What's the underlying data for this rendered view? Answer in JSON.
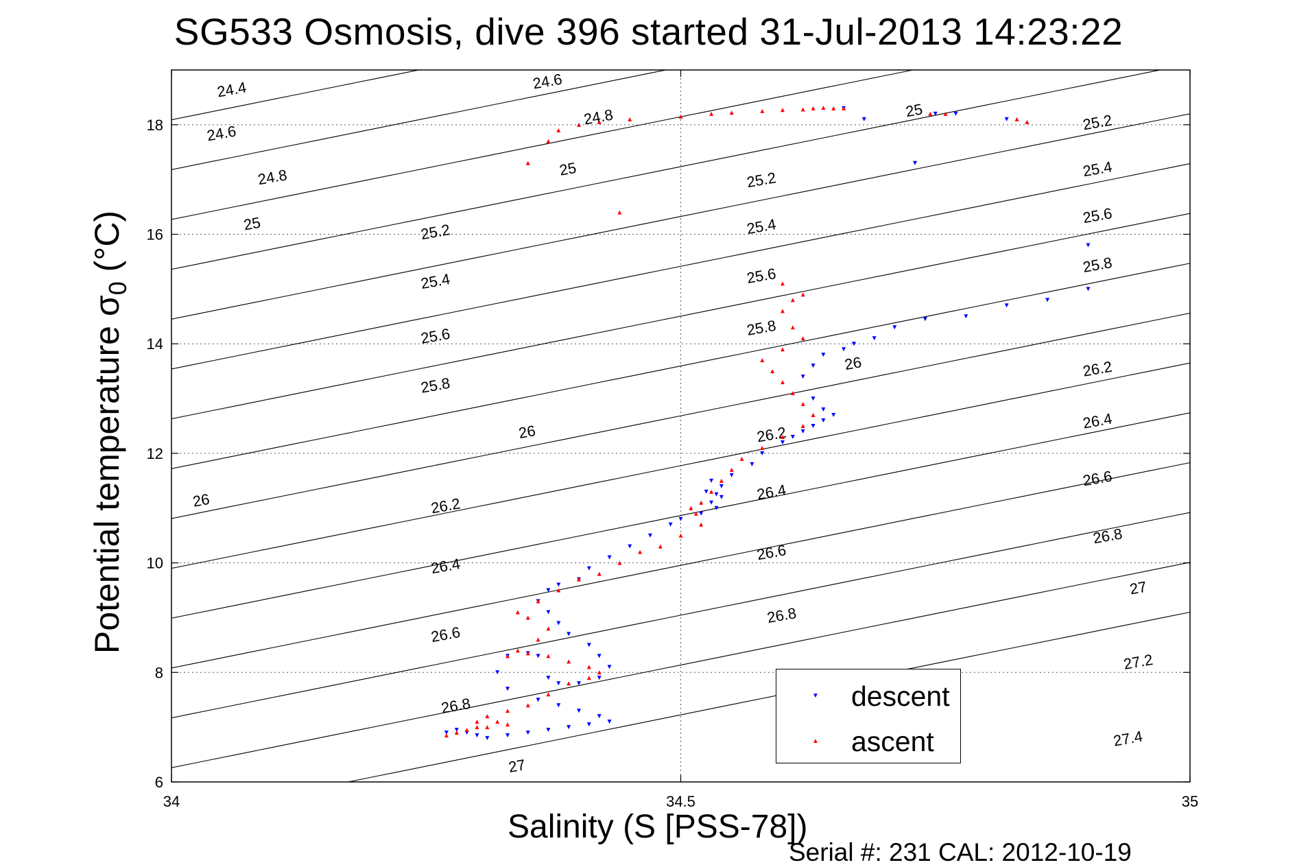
{
  "chart_data": {
    "type": "scatter",
    "title": "SG533 Osmosis, dive 396 started 31-Jul-2013 14:23:22",
    "xlabel": "Salinity (S [PSS-78])",
    "ylabel_main": "Potential temperature σ",
    "ylabel_sub": "0",
    "ylabel_unit": "(°C)",
    "footer": "Serial #: 231  CAL: 2012-10-19",
    "xlim": [
      34,
      35
    ],
    "ylim": [
      6,
      19
    ],
    "xticks": [
      "34",
      "34.5",
      "35"
    ],
    "yticks": [
      "6",
      "8",
      "10",
      "12",
      "14",
      "16",
      "18"
    ],
    "grid": "dotted at x=34.5 and y=8,10,12,14,16,18",
    "legend_position": "bottom-right",
    "colors": {
      "descent": "#0000ff",
      "ascent": "#ff0000",
      "contour": "#000000"
    },
    "contour_levels": [
      24.4,
      24.6,
      24.8,
      25,
      25.2,
      25.4,
      25.6,
      25.8,
      26,
      26.2,
      26.4,
      26.6,
      26.8,
      27,
      27.2,
      27.4
    ],
    "contour_labels": [
      {
        "text": "24.4",
        "x": 34.06,
        "y": 18.55
      },
      {
        "text": "24.6",
        "x": 34.37,
        "y": 18.7
      },
      {
        "text": "24.6",
        "x": 34.05,
        "y": 17.75
      },
      {
        "text": "24.8",
        "x": 34.42,
        "y": 18.05
      },
      {
        "text": "24.8",
        "x": 34.1,
        "y": 16.95
      },
      {
        "text": "25",
        "x": 34.39,
        "y": 17.1
      },
      {
        "text": "25",
        "x": 34.73,
        "y": 18.17
      },
      {
        "text": "25",
        "x": 34.08,
        "y": 16.1
      },
      {
        "text": "25.2",
        "x": 34.26,
        "y": 15.95
      },
      {
        "text": "25.2",
        "x": 34.58,
        "y": 16.9
      },
      {
        "text": "25.2",
        "x": 34.91,
        "y": 17.95
      },
      {
        "text": "25.4",
        "x": 34.26,
        "y": 15.05
      },
      {
        "text": "25.4",
        "x": 34.58,
        "y": 16.05
      },
      {
        "text": "25.4",
        "x": 34.91,
        "y": 17.1
      },
      {
        "text": "25.6",
        "x": 34.26,
        "y": 14.05
      },
      {
        "text": "25.6",
        "x": 34.58,
        "y": 15.15
      },
      {
        "text": "25.6",
        "x": 34.91,
        "y": 16.25
      },
      {
        "text": "25.8",
        "x": 34.26,
        "y": 13.15
      },
      {
        "text": "25.8",
        "x": 34.58,
        "y": 14.2
      },
      {
        "text": "25.8",
        "x": 34.91,
        "y": 15.35
      },
      {
        "text": "26",
        "x": 34.35,
        "y": 12.3
      },
      {
        "text": "26",
        "x": 34.67,
        "y": 13.55
      },
      {
        "text": "26",
        "x": 34.03,
        "y": 11.05
      },
      {
        "text": "26.2",
        "x": 34.27,
        "y": 10.95
      },
      {
        "text": "26.2",
        "x": 34.59,
        "y": 12.25
      },
      {
        "text": "26.2",
        "x": 34.91,
        "y": 13.45
      },
      {
        "text": "26.4",
        "x": 34.27,
        "y": 9.85
      },
      {
        "text": "26.4",
        "x": 34.59,
        "y": 11.2
      },
      {
        "text": "26.4",
        "x": 34.91,
        "y": 12.5
      },
      {
        "text": "26.6",
        "x": 34.27,
        "y": 8.6
      },
      {
        "text": "26.6",
        "x": 34.59,
        "y": 10.1
      },
      {
        "text": "26.6",
        "x": 34.91,
        "y": 11.45
      },
      {
        "text": "26.8",
        "x": 34.28,
        "y": 7.3
      },
      {
        "text": "26.8",
        "x": 34.6,
        "y": 8.95
      },
      {
        "text": "26.8",
        "x": 34.92,
        "y": 10.4
      },
      {
        "text": "27",
        "x": 34.34,
        "y": 6.2
      },
      {
        "text": "27",
        "x": 34.95,
        "y": 9.45
      },
      {
        "text": "27.2",
        "x": 34.95,
        "y": 8.1
      },
      {
        "text": "27.4",
        "x": 34.94,
        "y": 6.7
      }
    ],
    "series": [
      {
        "name": "descent",
        "color": "#0000ff",
        "marker": "triangle-down",
        "x": [
          34.9,
          34.9,
          34.86,
          34.82,
          34.78,
          34.74,
          34.71,
          34.69,
          34.67,
          34.66,
          34.64,
          34.63,
          34.62,
          34.63,
          34.64,
          34.65,
          34.64,
          34.63,
          34.62,
          34.61,
          34.6,
          34.58,
          34.57,
          34.55,
          34.54,
          34.535,
          34.53,
          34.525,
          34.53,
          34.54,
          34.535,
          34.52,
          34.5,
          34.49,
          34.47,
          34.45,
          34.43,
          34.41,
          34.4,
          34.38,
          34.37,
          34.36,
          34.37,
          34.38,
          34.39,
          34.41,
          34.42,
          34.43,
          34.42,
          34.4,
          34.38,
          34.37,
          34.36,
          34.35,
          34.33,
          34.32,
          34.33,
          34.36,
          34.38,
          34.4,
          34.42,
          34.43,
          34.41,
          34.39,
          34.37,
          34.35,
          34.33,
          34.31,
          34.3,
          34.29,
          34.28,
          34.27,
          34.66,
          34.68,
          34.73,
          34.77,
          34.82,
          34.75
        ],
        "y": [
          15.8,
          15,
          14.8,
          14.7,
          14.5,
          14.45,
          14.3,
          14.1,
          14,
          13.9,
          13.8,
          13.6,
          13.4,
          13,
          12.8,
          12.7,
          12.6,
          12.5,
          12.4,
          12.3,
          12.2,
          12,
          11.8,
          11.6,
          11.4,
          11.25,
          11.1,
          11.3,
          11.5,
          11.2,
          11,
          10.9,
          10.8,
          10.7,
          10.5,
          10.3,
          10.1,
          9.9,
          9.7,
          9.6,
          9.5,
          9.3,
          9.1,
          8.9,
          8.7,
          8.5,
          8.3,
          8.1,
          7.9,
          7.8,
          7.8,
          7.9,
          8.3,
          8.35,
          8.3,
          8.0,
          7.7,
          7.5,
          7.4,
          7.3,
          7.2,
          7.1,
          7.05,
          7.0,
          6.95,
          6.9,
          6.85,
          6.8,
          6.85,
          6.9,
          6.95,
          6.9,
          18.3,
          18.1,
          17.3,
          18.2,
          18.1,
          18.2
        ]
      },
      {
        "name": "ascent",
        "color": "#ff0000",
        "marker": "triangle-up",
        "x": [
          34.35,
          34.37,
          34.38,
          34.4,
          34.42,
          34.45,
          34.5,
          34.53,
          34.55,
          34.58,
          34.6,
          34.62,
          34.63,
          34.64,
          34.65,
          34.66,
          34.745,
          34.76,
          34.83,
          34.84,
          34.44,
          34.6,
          34.61,
          34.62,
          34.6,
          34.61,
          34.62,
          34.6,
          34.58,
          34.59,
          34.6,
          34.61,
          34.62,
          34.63,
          34.62,
          34.6,
          34.58,
          34.56,
          34.55,
          34.54,
          34.53,
          34.52,
          34.51,
          34.515,
          34.52,
          34.5,
          34.48,
          34.46,
          34.44,
          34.42,
          34.4,
          34.38,
          34.36,
          34.34,
          34.35,
          34.37,
          34.36,
          34.34,
          34.33,
          34.35,
          34.37,
          34.39,
          34.41,
          34.42,
          34.41,
          34.39,
          34.37,
          34.35,
          34.33,
          34.31,
          34.3,
          34.31,
          34.33,
          34.32,
          34.3,
          34.29,
          34.28,
          34.27
        ],
        "y": [
          17.3,
          17.7,
          17.9,
          18.0,
          18.05,
          18.1,
          18.15,
          18.2,
          18.22,
          18.25,
          18.27,
          18.28,
          18.3,
          18.31,
          18.3,
          18.3,
          18.2,
          18.2,
          18.1,
          18.05,
          16.4,
          15.1,
          14.8,
          14.9,
          14.6,
          14.3,
          14.1,
          13.9,
          13.7,
          13.5,
          13.3,
          13.1,
          12.9,
          12.7,
          12.5,
          12.3,
          12.1,
          11.9,
          11.7,
          11.5,
          11.3,
          11.1,
          11.0,
          10.9,
          10.7,
          10.5,
          10.3,
          10.2,
          10.0,
          9.8,
          9.7,
          9.5,
          9.3,
          9.1,
          9.0,
          8.8,
          8.6,
          8.4,
          8.3,
          8.35,
          8.3,
          8.2,
          8.1,
          8.0,
          7.9,
          7.8,
          7.6,
          7.4,
          7.3,
          7.2,
          7.1,
          7.0,
          7.05,
          7.1,
          7.0,
          6.95,
          6.9,
          6.85
        ]
      }
    ]
  }
}
